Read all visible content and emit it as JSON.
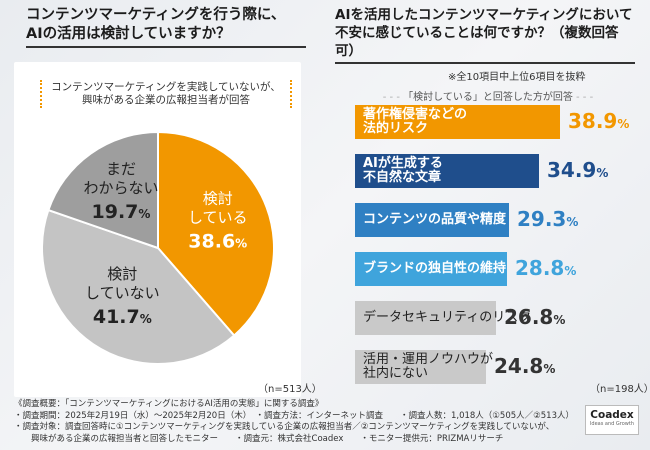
{
  "left": {
    "title_line1": "コンテンツマーケティングを行う際に、",
    "title_line2": "AIの活用は検討していますか？",
    "subtitle_line1": "コンテンツマーケティングを実践していないが、",
    "subtitle_line2": "興味がある企業の広報担当者が回答",
    "sample_size": "（n=513人）"
  },
  "right": {
    "title_line1": "AIを活用したコンテンツマーケティングにおいて",
    "title_line2": "不安に感じていることは何ですか？（複数回答可）",
    "sample_note": "※全10項目中上位6項目を抜粋",
    "filter_note": "「検討している」と回答した方が回答",
    "sample_size": "（n=198人）"
  },
  "chart_data": [
    {
      "type": "pie",
      "title": "コンテンツマーケティングを行う際に、AIの活用は検討していますか？",
      "slices": [
        {
          "label_line1": "検討",
          "label_line2": "している",
          "label_line3": "",
          "value": 38.6,
          "value_text": "38.6",
          "pct": "%",
          "color": "#f29700"
        },
        {
          "label_line1": "検討",
          "label_line2": "していない",
          "label_line3": "",
          "value": 41.7,
          "value_text": "41.7",
          "pct": "%",
          "color": "#c4c4c4"
        },
        {
          "label_line1": "まだ",
          "label_line2": "わからない",
          "label_line3": "",
          "value": 19.7,
          "value_text": "19.7",
          "pct": "%",
          "color": "#9e9e9e"
        }
      ]
    },
    {
      "type": "bar",
      "orientation": "horizontal",
      "title": "AIを活用したコンテンツマーケティングにおいて不安に感じていることは何ですか？",
      "max": 38.9,
      "bars": [
        {
          "label_line1": "著作権侵害などの",
          "label_line2": "法的リスク",
          "value": 38.9,
          "value_text": "38.9",
          "pct": "%",
          "color": "#f29700",
          "text_color": "#f29700"
        },
        {
          "label_line1": "AIが生成する",
          "label_line2": "不自然な文章",
          "value": 34.9,
          "value_text": "34.9",
          "pct": "%",
          "color": "#1f4e8c",
          "text_color": "#1f4e8c"
        },
        {
          "label_line1": "コンテンツの品質や精度",
          "label_line2": "",
          "value": 29.3,
          "value_text": "29.3",
          "pct": "%",
          "color": "#2f80c3",
          "text_color": "#2f80c3"
        },
        {
          "label_line1": "ブランドの独自性の維持",
          "label_line2": "",
          "value": 28.8,
          "value_text": "28.8",
          "pct": "%",
          "color": "#3fa4dc",
          "text_color": "#3fa4dc"
        },
        {
          "label_line1": "データセキュリティのリスク",
          "label_line2": "",
          "value": 26.8,
          "value_text": "26.8",
          "pct": "%",
          "color": "#c9c9c9",
          "text_color": "#333333"
        },
        {
          "label_line1": "活用・運用ノウハウが",
          "label_line2": "社内にない",
          "value": 24.8,
          "value_text": "24.8",
          "pct": "%",
          "color": "#c9c9c9",
          "text_color": "#333333"
        }
      ]
    }
  ],
  "footer": {
    "line1": "《調査概要：「コンテンツマーケティングにおけるAI活用の実態」に関する調査》",
    "line2": "・調査期間：2025年2月19日（水）～2025年2月20日（木）　・調査方法：インターネット調査　　・調査人数：1,018人（①505人／②513人）",
    "line3": "・調査対象：調査回答時に①コンテンツマーケティングを実践している企業の広報担当者／②コンテンツマーケティングを実践していないが、",
    "line4": "　　興味がある企業の広報担当者と回答したモニター　　・調査元：株式会社Coadex　　・モニター提供元：PRIZMAリサーチ"
  },
  "logo": {
    "name": "Coadex",
    "tagline": "Ideas and Growth"
  }
}
